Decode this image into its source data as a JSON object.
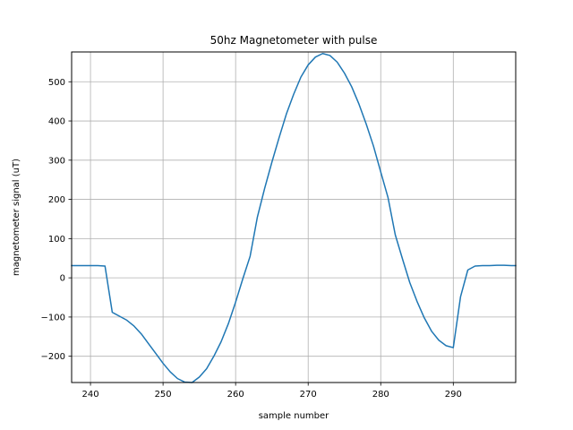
{
  "chart_data": {
    "type": "line",
    "title": "50hz Magnetometer with pulse",
    "xlabel": "sample number",
    "ylabel": "magnetometer signal (uT)",
    "xlim": [
      237.4,
      298.6
    ],
    "ylim": [
      -267,
      576
    ],
    "xticks": [
      240,
      250,
      260,
      270,
      280,
      290
    ],
    "yticks": [
      -200,
      -100,
      0,
      100,
      200,
      300,
      400,
      500
    ],
    "ytick_labels": [
      "−200",
      "−100",
      "0",
      "100",
      "200",
      "300",
      "400",
      "500"
    ],
    "grid": true,
    "colors": {
      "series": "#1f77b4",
      "grid": "#b0b0b0"
    },
    "series": [
      {
        "x": [
          237.4,
          238,
          239,
          240,
          241,
          242,
          243,
          244,
          245,
          246,
          247,
          248,
          249,
          250,
          251,
          252,
          253,
          254,
          255,
          256,
          257,
          258,
          259,
          260,
          261,
          262,
          263,
          264,
          265,
          266,
          267,
          268,
          269,
          270,
          271,
          272,
          273,
          274,
          275,
          276,
          277,
          278,
          279,
          280,
          281,
          282,
          283,
          284,
          285,
          286,
          287,
          288,
          289,
          290,
          291,
          292,
          293,
          294,
          295,
          296,
          297,
          298,
          298.6
        ],
        "y": [
          31,
          31,
          31,
          31,
          31,
          30,
          -88,
          -98,
          -108,
          -123,
          -143,
          -168,
          -193,
          -218,
          -240,
          -257,
          -266,
          -267,
          -253,
          -232,
          -200,
          -163,
          -117,
          -62,
          -2,
          55,
          155,
          228,
          295,
          358,
          418,
          468,
          512,
          543,
          563,
          572,
          567,
          550,
          522,
          487,
          443,
          392,
          336,
          270,
          205,
          110,
          48,
          -12,
          -60,
          -102,
          -136,
          -159,
          -173,
          -178,
          -48,
          20,
          30,
          31,
          31,
          32,
          32,
          31,
          31
        ]
      }
    ]
  }
}
